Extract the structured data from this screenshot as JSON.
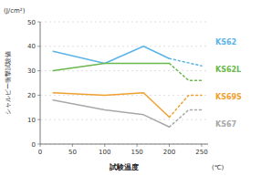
{
  "chart_data": {
    "type": "line",
    "xlabel": "試験温度",
    "ylabel": "シャルピー衝撃試験値",
    "annotations": [
      "(J/cm²)",
      "(℃)"
    ],
    "xlim": [
      0,
      260
    ],
    "ylim": [
      0,
      50
    ],
    "xticks": [
      0,
      50,
      100,
      150,
      200,
      250
    ],
    "yticks": [
      0,
      10,
      20,
      30,
      40,
      50
    ],
    "grid": true,
    "legend": "right",
    "series": [
      {
        "name": "KS62",
        "color": "#5ab4e8",
        "line_style": "solid",
        "x": [
          20,
          100,
          160,
          200
        ],
        "values": [
          38,
          33,
          40,
          35
        ]
      },
      {
        "color": "#5ab4e8",
        "line_style": "dotted",
        "x": [
          200,
          250
        ],
        "values": [
          35,
          32
        ]
      },
      {
        "name": "KS62L",
        "color": "#6ab84c",
        "line_style": "solid",
        "x": [
          20,
          100,
          160,
          200
        ],
        "values": [
          30,
          33,
          33,
          33
        ]
      },
      {
        "color": "#6ab84c",
        "line_style": "dotted",
        "x": [
          200,
          230,
          250
        ],
        "values": [
          33,
          26,
          26
        ]
      },
      {
        "name": "KS69S",
        "color": "#f0a030",
        "line_style": "solid",
        "x": [
          20,
          100,
          160,
          200
        ],
        "values": [
          21,
          20,
          21,
          11
        ]
      },
      {
        "color": "#f0a030",
        "line_style": "dotted",
        "x": [
          200,
          230,
          250
        ],
        "values": [
          11,
          20,
          20
        ]
      },
      {
        "name": "KS67",
        "color": "#a8a8a8",
        "line_style": "solid",
        "x": [
          20,
          100,
          160,
          200
        ],
        "values": [
          18,
          14,
          12,
          7
        ]
      },
      {
        "color": "#a8a8a8",
        "line_style": "dotted",
        "x": [
          200,
          230,
          250
        ],
        "values": [
          7,
          14,
          14
        ]
      }
    ]
  }
}
